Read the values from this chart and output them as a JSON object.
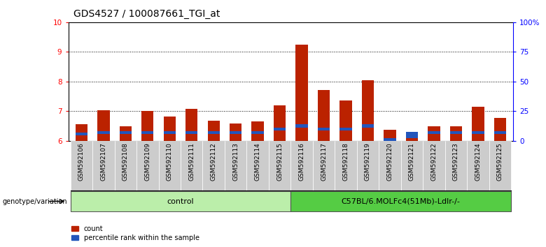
{
  "title": "GDS4527 / 100087661_TGI_at",
  "samples": [
    "GSM592106",
    "GSM592107",
    "GSM592108",
    "GSM592109",
    "GSM592110",
    "GSM592111",
    "GSM592112",
    "GSM592113",
    "GSM592114",
    "GSM592115",
    "GSM592116",
    "GSM592117",
    "GSM592118",
    "GSM592119",
    "GSM592120",
    "GSM592121",
    "GSM592122",
    "GSM592123",
    "GSM592124",
    "GSM592125"
  ],
  "red_values": [
    6.55,
    7.02,
    6.48,
    7.0,
    6.82,
    7.08,
    6.67,
    6.58,
    6.65,
    7.2,
    9.25,
    7.72,
    7.35,
    8.05,
    6.38,
    6.15,
    6.48,
    6.5,
    7.15,
    6.78
  ],
  "blue_positions": [
    6.18,
    6.22,
    6.22,
    6.22,
    6.22,
    6.22,
    6.22,
    6.22,
    6.22,
    6.35,
    6.45,
    6.35,
    6.35,
    6.45,
    6.0,
    6.08,
    6.22,
    6.22,
    6.22,
    6.22
  ],
  "blue_heights": [
    0.1,
    0.1,
    0.1,
    0.1,
    0.1,
    0.1,
    0.1,
    0.1,
    0.1,
    0.1,
    0.1,
    0.1,
    0.1,
    0.1,
    0.1,
    0.22,
    0.1,
    0.1,
    0.1,
    0.1
  ],
  "ylim_left": [
    6.0,
    10.0
  ],
  "ylim_right": [
    0,
    100
  ],
  "yticks_left": [
    6,
    7,
    8,
    9,
    10
  ],
  "yticks_right": [
    0,
    25,
    50,
    75,
    100
  ],
  "ytick_labels_right": [
    "0",
    "25",
    "50",
    "75",
    "100%"
  ],
  "control_count": 10,
  "treatment_count": 10,
  "control_label": "control",
  "treatment_label": "C57BL/6.MOLFc4(51Mb)-Ldlr-/-",
  "genotype_label": "genotype/variation",
  "legend_count": "count",
  "legend_percentile": "percentile rank within the sample",
  "bar_color": "#bb2200",
  "blue_color": "#2255bb",
  "control_bg": "#bbeeaa",
  "treatment_bg": "#55cc44",
  "xticklabel_bg": "#cccccc",
  "bar_width": 0.55,
  "title_fontsize": 10,
  "tick_fontsize": 7.5
}
